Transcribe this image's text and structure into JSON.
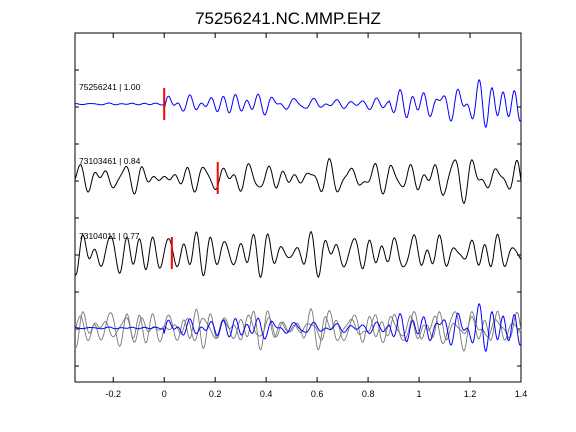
{
  "chart_data": {
    "type": "line",
    "title": "75256241.NC.MMP.EHZ",
    "xlabel": "",
    "ylabel": "",
    "xlim": [
      -0.35,
      1.4
    ],
    "x_ticks": [
      -0.2,
      0,
      0.2,
      0.4,
      0.6,
      0.8,
      1,
      1.2,
      1.4
    ],
    "x_tick_labels": [
      "-0.2",
      "0",
      "0.2",
      "0.4",
      "0.6",
      "0.8",
      "1",
      "1.2",
      "1.4"
    ],
    "grid": false,
    "colors": {
      "reference": "#0000ff",
      "match": "#000000",
      "overlay_match": "#777777",
      "pick": "#ff0000"
    },
    "traces": [
      {
        "event_id": "75256241",
        "correlation": "1.00",
        "label": "75256241 | 1.00",
        "color": "#0000ff",
        "pick_time": 0.0
      },
      {
        "event_id": "73103461",
        "correlation": "0.84",
        "label": "73103461 | 0.84",
        "color": "#000000",
        "pick_time": 0.21
      },
      {
        "event_id": "73104011",
        "correlation": "0.77",
        "label": "73104011 | 0.77",
        "color": "#000000",
        "pick_time": 0.03
      }
    ],
    "overlay": {
      "description_in_image": "",
      "traces_shown": [
        "75256241",
        "73103461",
        "73104011"
      ]
    }
  }
}
